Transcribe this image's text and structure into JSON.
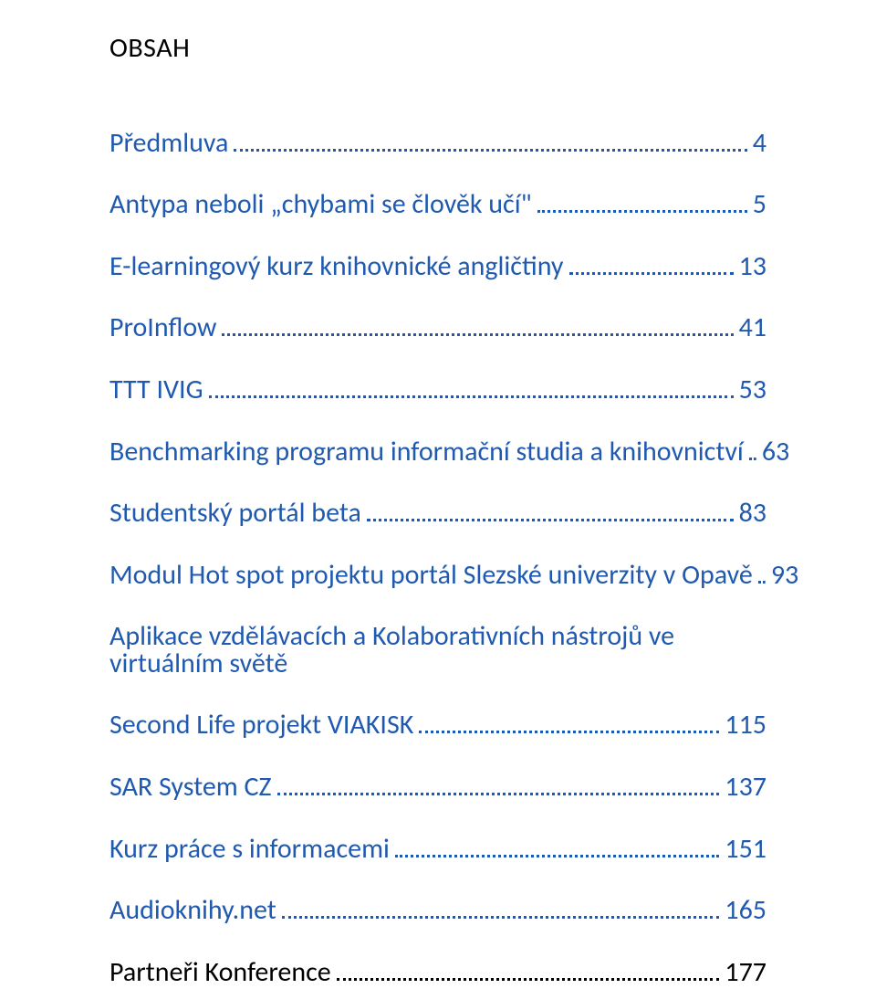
{
  "title": "OBSAH",
  "link_color": "#1f5ab0",
  "text_color": "#000000",
  "entries": [
    {
      "label": "Předmluva",
      "page": "4",
      "color": "link"
    },
    {
      "label": "Antypa neboli „chybami se člověk učí\"",
      "page": "5",
      "color": "link"
    },
    {
      "label": "E-learningový kurz knihovnické angličtiny",
      "page": "13",
      "color": "link"
    },
    {
      "label": "ProInflow",
      "page": "41",
      "color": "link"
    },
    {
      "label": "TTT IVIG",
      "page": "53",
      "color": "link"
    },
    {
      "label": "Benchmarking programu informační studia a knihovnictví",
      "page": "63",
      "color": "link"
    },
    {
      "label": "Studentský portál beta",
      "page": "83",
      "color": "link"
    },
    {
      "label": "Modul Hot spot projektu portál Slezské univerzity v Opavě",
      "page": "93",
      "color": "link"
    },
    {
      "multiline": true,
      "line1": "Aplikace vzdělávacích a Kolaborativních nástrojů ve virtuálním světě",
      "line2": "Second Life projekt VIAKISK",
      "page": "115",
      "color": "link"
    },
    {
      "label": "SAR System CZ",
      "page": "137",
      "color": "link"
    },
    {
      "label": "Kurz práce s informacemi",
      "page": "151",
      "color": "link"
    },
    {
      "label": "Audioknihy.net",
      "page": "165",
      "color": "link"
    },
    {
      "label": "Partneři Konference",
      "page": "177",
      "color": "text"
    }
  ]
}
